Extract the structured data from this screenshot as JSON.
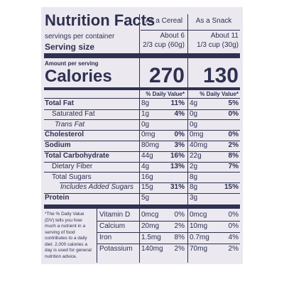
{
  "header": {
    "title": "Nutrition Facts",
    "columns": [
      "As a Cereal",
      "As a Snack"
    ]
  },
  "servings": {
    "label": "servings per container",
    "values": [
      "About 6",
      "About 11"
    ]
  },
  "serving_size": {
    "label": "Serving size",
    "values": [
      "2/3 cup (60g)",
      "1/3 cup (30g)"
    ]
  },
  "calories": {
    "caption": "Amount per serving",
    "label": "Calories",
    "values": [
      "270",
      "130"
    ]
  },
  "dv_header": [
    "% Daily Value*",
    "% Daily Value*"
  ],
  "nutrients": [
    {
      "name": "Total Fat",
      "cereal": [
        "8g",
        "11%"
      ],
      "snack": [
        "4g",
        "5%"
      ]
    },
    {
      "name": "Saturated Fat",
      "cereal": [
        "1g",
        "4%"
      ],
      "snack": [
        "0g",
        "0%"
      ]
    },
    {
      "name": "Trans Fat",
      "cereal": [
        "0g"
      ],
      "snack": [
        "0g"
      ]
    },
    {
      "name": "Cholesterol",
      "cereal": [
        "0mg",
        "0%"
      ],
      "snack": [
        "0mg",
        "0%"
      ]
    },
    {
      "name": "Sodium",
      "cereal": [
        "80mg",
        "3%"
      ],
      "snack": [
        "40mg",
        "2%"
      ]
    },
    {
      "name": "Total Carbohydrate",
      "cereal": [
        "44g",
        "16%"
      ],
      "snack": [
        "22g",
        "8%"
      ]
    },
    {
      "name": "Dietary Fiber",
      "cereal": [
        "4g",
        "13%"
      ],
      "snack": [
        "2g",
        "7%"
      ]
    },
    {
      "name": "Total Sugars",
      "cereal": [
        "16g"
      ],
      "snack": [
        "8g"
      ]
    },
    {
      "name": "Includes Added Sugars",
      "cereal": [
        "15g",
        "31%"
      ],
      "snack": [
        "8g",
        "15%"
      ]
    },
    {
      "name": "Protein",
      "cereal": [
        "5g"
      ],
      "snack": [
        "3g"
      ]
    }
  ],
  "footnote": "*The % Daily Value (DV) tells you how much a nutrient in a serving of food contributes to a daily diet. 2,000 calories a day is used for general nutrition advice.",
  "vitamins": [
    {
      "name": "Vitamin D",
      "cereal": [
        "0mcg",
        "0%"
      ],
      "snack": [
        "0mcg",
        "0%"
      ]
    },
    {
      "name": "Calcium",
      "cereal": [
        "20mg",
        "2%"
      ],
      "snack": [
        "10mg",
        "0%"
      ]
    },
    {
      "name": "Iron",
      "cereal": [
        "1.5mg",
        "8%"
      ],
      "snack": [
        "0.7mg",
        "4%"
      ]
    },
    {
      "name": "Potassium",
      "cereal": [
        "140mg",
        "2%"
      ],
      "snack": [
        "70mg",
        "2%"
      ]
    }
  ]
}
